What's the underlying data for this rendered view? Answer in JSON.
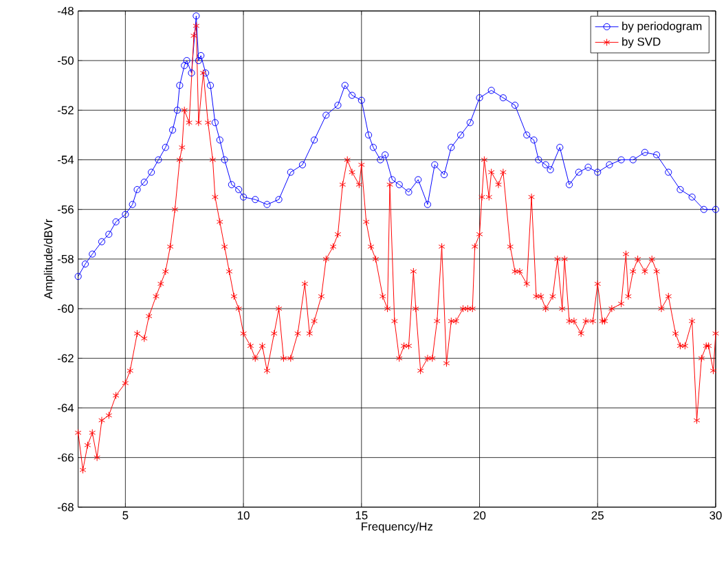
{
  "chart_data": {
    "type": "line",
    "xlabel": "Frequency/Hz",
    "ylabel": "Amplitude/dBVr",
    "xlim": [
      3,
      30
    ],
    "ylim": [
      -68,
      -48
    ],
    "xticks": [
      5,
      10,
      15,
      20,
      25,
      30
    ],
    "yticks": [
      -68,
      -66,
      -64,
      -62,
      -60,
      -58,
      -56,
      -54,
      -52,
      -50,
      -48
    ],
    "grid": true,
    "legend": "top right",
    "series": [
      {
        "name": "by periodogram",
        "color": "#0000ff",
        "marker": "circle",
        "x": [
          3.0,
          3.3,
          3.6,
          4.0,
          4.3,
          4.6,
          5.0,
          5.3,
          5.5,
          5.8,
          6.1,
          6.4,
          6.7,
          7.0,
          7.2,
          7.3,
          7.5,
          7.6,
          7.8,
          8.0,
          8.1,
          8.2,
          8.4,
          8.6,
          8.8,
          9.0,
          9.2,
          9.5,
          9.8,
          10.0,
          10.5,
          11.0,
          11.5,
          12.0,
          12.5,
          13.0,
          13.5,
          14.0,
          14.3,
          14.6,
          15.0,
          15.3,
          15.5,
          15.8,
          16.0,
          16.3,
          16.6,
          17.0,
          17.4,
          17.8,
          18.1,
          18.5,
          18.8,
          19.2,
          19.6,
          20.0,
          20.5,
          21.0,
          21.5,
          22.0,
          22.3,
          22.5,
          22.8,
          23.0,
          23.4,
          23.8,
          24.2,
          24.6,
          25.0,
          25.5,
          26.0,
          26.5,
          27.0,
          27.5,
          28.0,
          28.5,
          29.0,
          29.5,
          30.0
        ],
        "values": [
          -58.7,
          -58.2,
          -57.8,
          -57.3,
          -57.0,
          -56.5,
          -56.2,
          -55.8,
          -55.2,
          -54.9,
          -54.5,
          -54.0,
          -53.5,
          -52.8,
          -52.0,
          -51.0,
          -50.2,
          -50.0,
          -50.5,
          -48.2,
          -50.0,
          -49.8,
          -50.5,
          -51.0,
          -52.5,
          -53.2,
          -54.0,
          -55.0,
          -55.2,
          -55.5,
          -55.6,
          -55.8,
          -55.6,
          -54.5,
          -54.2,
          -53.2,
          -52.2,
          -51.8,
          -51.0,
          -51.4,
          -51.6,
          -53.0,
          -53.5,
          -54.0,
          -53.8,
          -54.8,
          -55.0,
          -55.3,
          -54.8,
          -55.8,
          -54.2,
          -54.6,
          -53.5,
          -53.0,
          -52.5,
          -51.5,
          -51.2,
          -51.5,
          -51.8,
          -53.0,
          -53.2,
          -54.0,
          -54.2,
          -54.4,
          -53.5,
          -55.0,
          -54.5,
          -54.3,
          -54.5,
          -54.2,
          -54.0,
          -54.0,
          -53.7,
          -53.8,
          -54.5,
          -55.2,
          -55.5,
          -56.0,
          -56.0
        ]
      },
      {
        "name": "by SVD",
        "color": "#ff0000",
        "marker": "cross",
        "x": [
          3.0,
          3.2,
          3.4,
          3.6,
          3.8,
          4.0,
          4.3,
          4.6,
          5.0,
          5.2,
          5.5,
          5.8,
          6.0,
          6.3,
          6.5,
          6.7,
          6.9,
          7.1,
          7.3,
          7.4,
          7.5,
          7.7,
          7.9,
          8.0,
          8.1,
          8.3,
          8.5,
          8.7,
          8.8,
          9.0,
          9.2,
          9.4,
          9.6,
          9.8,
          10.0,
          10.3,
          10.5,
          10.8,
          11.0,
          11.3,
          11.5,
          11.7,
          12.0,
          12.3,
          12.6,
          12.8,
          13.0,
          13.3,
          13.5,
          13.8,
          14.0,
          14.2,
          14.4,
          14.6,
          14.9,
          15.0,
          15.2,
          15.4,
          15.6,
          15.9,
          16.1,
          16.2,
          16.4,
          16.6,
          16.8,
          17.0,
          17.2,
          17.3,
          17.5,
          17.8,
          18.0,
          18.2,
          18.4,
          18.6,
          18.8,
          19.0,
          19.3,
          19.5,
          19.7,
          19.8,
          20.0,
          20.1,
          20.2,
          20.4,
          20.5,
          20.8,
          21.0,
          21.3,
          21.5,
          21.7,
          22.0,
          22.2,
          22.4,
          22.6,
          22.8,
          23.1,
          23.3,
          23.5,
          23.6,
          23.8,
          24.0,
          24.3,
          24.5,
          24.8,
          25.0,
          25.2,
          25.3,
          25.6,
          26.0,
          26.2,
          26.3,
          26.5,
          26.7,
          27.0,
          27.3,
          27.5,
          27.7,
          28.0,
          28.3,
          28.5,
          28.7,
          29.0,
          29.2,
          29.4,
          29.6,
          29.7,
          29.9,
          30.0
        ],
        "values": [
          -65.0,
          -66.5,
          -65.5,
          -65.0,
          -66.0,
          -64.5,
          -64.3,
          -63.5,
          -63.0,
          -62.5,
          -61.0,
          -61.2,
          -60.3,
          -59.5,
          -59.0,
          -58.5,
          -57.5,
          -56.0,
          -54.0,
          -53.5,
          -52.0,
          -52.5,
          -49.0,
          -48.6,
          -52.5,
          -50.5,
          -52.5,
          -54.0,
          -55.5,
          -56.5,
          -57.5,
          -58.5,
          -59.5,
          -60.0,
          -61.0,
          -61.5,
          -62.0,
          -61.5,
          -62.5,
          -61.0,
          -60.0,
          -62.0,
          -62.0,
          -61.0,
          -59.0,
          -61.0,
          -60.5,
          -59.5,
          -58.0,
          -57.5,
          -57.0,
          -55.0,
          -54.0,
          -54.5,
          -55.0,
          -54.2,
          -56.5,
          -57.5,
          -58.0,
          -59.5,
          -60.0,
          -55.0,
          -60.5,
          -62.0,
          -61.5,
          -61.5,
          -58.5,
          -60.0,
          -62.5,
          -62.0,
          -62.0,
          -60.5,
          -57.5,
          -62.2,
          -60.5,
          -60.5,
          -60.0,
          -60.0,
          -60.0,
          -57.5,
          -57.0,
          -55.5,
          -54.0,
          -55.5,
          -54.5,
          -55.0,
          -54.5,
          -57.5,
          -58.5,
          -58.5,
          -59.0,
          -55.5,
          -59.5,
          -59.5,
          -60.0,
          -59.5,
          -58.0,
          -60.0,
          -58.0,
          -60.5,
          -60.5,
          -61.0,
          -60.5,
          -60.5,
          -59.0,
          -60.5,
          -60.5,
          -60.0,
          -59.8,
          -57.8,
          -59.5,
          -58.5,
          -58.0,
          -58.5,
          -58.0,
          -58.5,
          -60.0,
          -59.5,
          -61.0,
          -61.5,
          -61.5,
          -60.5,
          -64.5,
          -62.0,
          -61.5,
          -61.5,
          -62.5,
          -61.0
        ]
      }
    ]
  }
}
